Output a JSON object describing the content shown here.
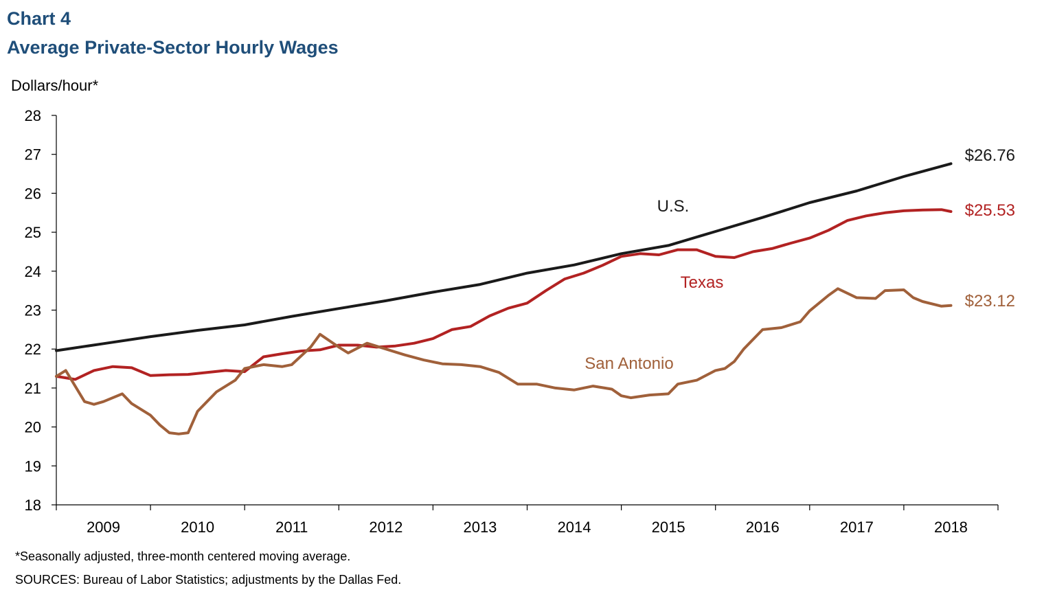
{
  "header": {
    "chart_number": "Chart 4",
    "title": "Average Private-Sector Hourly Wages",
    "unit_label": "Dollars/hour*"
  },
  "footnotes": {
    "note": "*Seasonally adjusted, three-month centered moving average.",
    "sources": "SOURCES: Bureau of Labor Statistics; adjustments by the Dallas Fed."
  },
  "colors": {
    "title": "#1f4e79",
    "us": "#1a1a1a",
    "texas": "#b22222",
    "san_antonio": "#a0603a"
  },
  "chart_data": {
    "type": "line",
    "title": "Average Private-Sector Hourly Wages",
    "ylabel": "Dollars/hour*",
    "ylim": [
      18,
      28
    ],
    "yticks": [
      18,
      19,
      20,
      21,
      22,
      23,
      24,
      25,
      26,
      27,
      28
    ],
    "xlim": [
      2008.5,
      2018.5
    ],
    "xticks": [
      "2009",
      "2010",
      "2011",
      "2012",
      "2013",
      "2014",
      "2015",
      "2016",
      "2017",
      "2018"
    ],
    "grid": false,
    "series": [
      {
        "name": "U.S.",
        "end_label": "$26.76",
        "x": [
          2008.5,
          2009.0,
          2009.5,
          2010.0,
          2010.5,
          2011.0,
          2011.5,
          2012.0,
          2012.5,
          2013.0,
          2013.5,
          2014.0,
          2014.5,
          2015.0,
          2015.5,
          2016.0,
          2016.5,
          2017.0,
          2017.5,
          2018.0
        ],
        "values": [
          21.96,
          22.14,
          22.32,
          22.48,
          22.62,
          22.84,
          23.04,
          23.24,
          23.46,
          23.66,
          23.95,
          24.16,
          24.45,
          24.66,
          25.02,
          25.38,
          25.76,
          26.06,
          26.43,
          26.76
        ]
      },
      {
        "name": "Texas",
        "end_label": "$25.53",
        "x": [
          2008.5,
          2008.7,
          2008.9,
          2009.1,
          2009.3,
          2009.5,
          2009.7,
          2009.9,
          2010.1,
          2010.3,
          2010.5,
          2010.7,
          2010.9,
          2011.1,
          2011.3,
          2011.5,
          2011.7,
          2011.9,
          2012.1,
          2012.3,
          2012.5,
          2012.7,
          2012.9,
          2013.1,
          2013.3,
          2013.5,
          2013.7,
          2013.9,
          2014.1,
          2014.3,
          2014.5,
          2014.7,
          2014.9,
          2015.1,
          2015.3,
          2015.5,
          2015.7,
          2015.9,
          2016.1,
          2016.3,
          2016.5,
          2016.7,
          2016.9,
          2017.1,
          2017.3,
          2017.5,
          2017.7,
          2017.9,
          2018.0
        ],
        "values": [
          21.3,
          21.22,
          21.45,
          21.55,
          21.52,
          21.32,
          21.34,
          21.35,
          21.4,
          21.45,
          21.42,
          21.8,
          21.88,
          21.95,
          21.98,
          22.1,
          22.1,
          22.05,
          22.08,
          22.15,
          22.27,
          22.5,
          22.58,
          22.85,
          23.05,
          23.18,
          23.5,
          23.8,
          23.95,
          24.15,
          24.38,
          24.45,
          24.42,
          24.55,
          24.55,
          24.38,
          24.35,
          24.5,
          24.58,
          24.72,
          24.85,
          25.05,
          25.3,
          25.42,
          25.5,
          25.55,
          25.57,
          25.58,
          25.53
        ]
      },
      {
        "name": "San Antonio",
        "end_label": "$23.12",
        "x": [
          2008.5,
          2008.6,
          2008.8,
          2008.9,
          2009.0,
          2009.2,
          2009.3,
          2009.5,
          2009.6,
          2009.7,
          2009.8,
          2009.9,
          2010.0,
          2010.1,
          2010.2,
          2010.4,
          2010.5,
          2010.7,
          2010.9,
          2011.0,
          2011.2,
          2011.3,
          2011.5,
          2011.6,
          2011.8,
          2012.0,
          2012.2,
          2012.4,
          2012.6,
          2012.8,
          2013.0,
          2013.2,
          2013.4,
          2013.6,
          2013.8,
          2014.0,
          2014.2,
          2014.4,
          2014.5,
          2014.6,
          2014.8,
          2015.0,
          2015.1,
          2015.3,
          2015.5,
          2015.6,
          2015.7,
          2015.8,
          2016.0,
          2016.2,
          2016.4,
          2016.5,
          2016.7,
          2016.8,
          2017.0,
          2017.2,
          2017.3,
          2017.5,
          2017.6,
          2017.7,
          2017.9,
          2018.0
        ],
        "values": [
          21.3,
          21.45,
          20.65,
          20.58,
          20.65,
          20.85,
          20.6,
          20.3,
          20.05,
          19.85,
          19.82,
          19.85,
          20.4,
          20.65,
          20.9,
          21.2,
          21.5,
          21.6,
          21.55,
          21.6,
          22.05,
          22.38,
          22.05,
          21.9,
          22.15,
          22.0,
          21.85,
          21.72,
          21.62,
          21.6,
          21.55,
          21.4,
          21.1,
          21.1,
          21.0,
          20.95,
          21.05,
          20.97,
          20.8,
          20.75,
          20.82,
          20.85,
          21.1,
          21.2,
          21.45,
          21.5,
          21.68,
          22.0,
          22.5,
          22.55,
          22.7,
          22.98,
          23.38,
          23.55,
          23.32,
          23.3,
          23.5,
          23.52,
          23.32,
          23.22,
          23.1,
          23.12
        ]
      }
    ],
    "inline_labels": [
      "U.S.",
      "Texas",
      "San Antonio"
    ]
  }
}
